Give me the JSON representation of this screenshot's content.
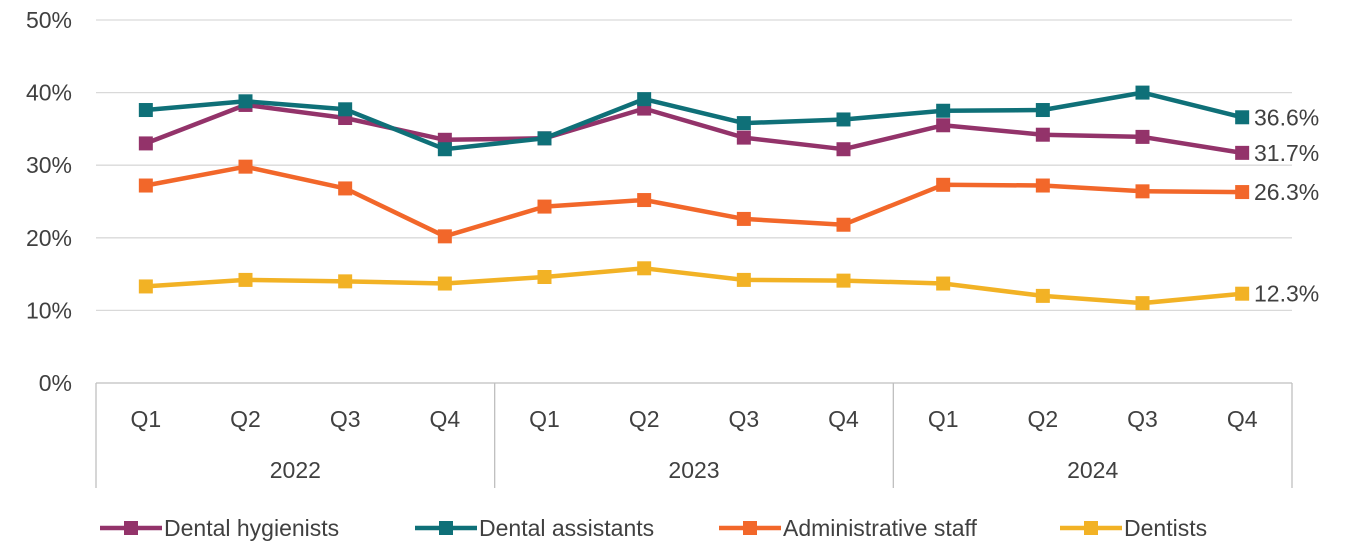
{
  "chart_data": {
    "type": "line",
    "title": "",
    "xlabel": "",
    "ylabel": "",
    "ylim": [
      0,
      50
    ],
    "y_ticks": [
      "0%",
      "10%",
      "20%",
      "30%",
      "40%",
      "50%"
    ],
    "y_tick_values": [
      0,
      10,
      20,
      30,
      40,
      50
    ],
    "grid": true,
    "legend_position": "bottom",
    "categories": [
      "Q1",
      "Q2",
      "Q3",
      "Q4",
      "Q1",
      "Q2",
      "Q3",
      "Q4",
      "Q1",
      "Q2",
      "Q3",
      "Q4"
    ],
    "groups": [
      {
        "label": "2022",
        "count": 4
      },
      {
        "label": "2023",
        "count": 4
      },
      {
        "label": "2024",
        "count": 4
      }
    ],
    "series": [
      {
        "name": "Dental hygienists",
        "color": "#93336a",
        "values": [
          33.0,
          38.3,
          36.5,
          33.5,
          33.7,
          37.8,
          33.8,
          32.2,
          35.5,
          34.2,
          33.9,
          31.7
        ],
        "end_label": "31.7%"
      },
      {
        "name": "Dental assistants",
        "color": "#0f7078",
        "values": [
          37.6,
          38.8,
          37.7,
          32.2,
          33.7,
          39.1,
          35.8,
          36.3,
          37.5,
          37.6,
          40.0,
          36.6
        ],
        "end_label": "36.6%"
      },
      {
        "name": "Administrative staff",
        "color": "#f2672a",
        "values": [
          27.2,
          29.8,
          26.8,
          20.2,
          24.3,
          25.2,
          22.6,
          21.8,
          27.3,
          27.2,
          26.4,
          26.3
        ],
        "end_label": "26.3%"
      },
      {
        "name": "Dentists",
        "color": "#f2b225",
        "values": [
          13.3,
          14.2,
          14.0,
          13.7,
          14.6,
          15.8,
          14.2,
          14.1,
          13.7,
          12.0,
          11.0,
          12.3
        ],
        "end_label": "12.3%"
      }
    ]
  }
}
